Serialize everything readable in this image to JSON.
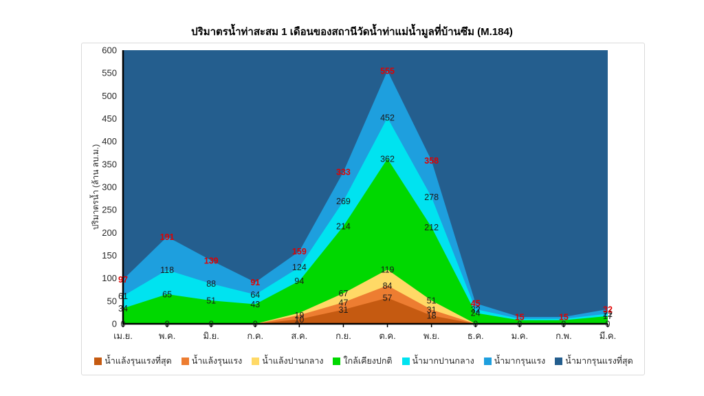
{
  "title": "ปริมาตรน้ำท่าสะสม 1 เดือนของสถานีวัดน้ำท่าแม่น้ำมูลที่บ้านซึม (M.184)",
  "chart_data": {
    "type": "area",
    "stacked": true,
    "title": "ปริมาตรน้ำท่าสะสม 1 เดือนของสถานีวัดน้ำท่าแม่น้ำมูลที่บ้านซึม (M.184)",
    "ylabel": "ปริมาตรน้ำ (ล้าน ลบ.ม.)",
    "xlabel": "",
    "categories": [
      "เม.ย.",
      "พ.ค.",
      "มิ.ย.",
      "ก.ค.",
      "ส.ค.",
      "ก.ย.",
      "ต.ค.",
      "พ.ย.",
      "ธ.ค.",
      "ม.ค.",
      "ก.พ.",
      "มี.ค."
    ],
    "y_axis": {
      "min": 0,
      "max": 600,
      "step": 50
    },
    "legend_position": "bottom",
    "grid": false,
    "note": "tops = cumulative stacked value at each month as labeled on the chart; last series fills plot to 600",
    "series": [
      {
        "key": "drought-most-severe",
        "name": "น้ำแล้งรุนแรงที่สุด",
        "color": "#C55A11",
        "label_color": "#1a1a1a",
        "label_bold": false,
        "tops": [
          0,
          0,
          0,
          0,
          10,
          31,
          57,
          18,
          0,
          0,
          0,
          0
        ],
        "label_visible": [
          1,
          1,
          1,
          1,
          1,
          1,
          1,
          1,
          1,
          1,
          1,
          1
        ]
      },
      {
        "key": "drought-severe",
        "name": "น้ำแล้งรุนแรง",
        "color": "#ED7D31",
        "label_color": "#1a1a1a",
        "label_bold": false,
        "tops": [
          0,
          0,
          0,
          0,
          19,
          47,
          84,
          31,
          0,
          0,
          0,
          0
        ],
        "label_visible": [
          0,
          0,
          0,
          0,
          1,
          1,
          1,
          1,
          0,
          0,
          0,
          0
        ]
      },
      {
        "key": "drought-moderate",
        "name": "น้ำแล้งปานกลาง",
        "color": "#FFD966",
        "label_color": "#1a1a1a",
        "label_bold": false,
        "tops": [
          0,
          0,
          0,
          0,
          24,
          67,
          119,
          51,
          0,
          0,
          0,
          0
        ],
        "label_visible": [
          0,
          0,
          0,
          0,
          0,
          1,
          1,
          1,
          0,
          0,
          0,
          0
        ]
      },
      {
        "key": "near-normal",
        "name": "ใกล้เคียงปกติ",
        "color": "#00D800",
        "label_color": "#1a1a1a",
        "label_bold": false,
        "tops": [
          34,
          65,
          51,
          43,
          94,
          214,
          362,
          212,
          24,
          8,
          8,
          17
        ],
        "label_visible": [
          1,
          1,
          1,
          1,
          1,
          1,
          1,
          1,
          1,
          0,
          0,
          1
        ]
      },
      {
        "key": "flood-moderate",
        "name": "น้ำมากปานกลาง",
        "color": "#00E3F0",
        "label_color": "#1a1a1a",
        "label_bold": false,
        "tops": [
          61,
          118,
          88,
          64,
          124,
          269,
          452,
          278,
          32,
          11,
          11,
          22
        ],
        "label_visible": [
          1,
          1,
          1,
          1,
          1,
          1,
          1,
          1,
          1,
          0,
          0,
          1
        ]
      },
      {
        "key": "flood-severe",
        "name": "น้ำมากรุนแรง",
        "color": "#1E9FDE",
        "label_color": "#E00000",
        "label_bold": true,
        "tops": [
          97,
          191,
          139,
          91,
          159,
          333,
          555,
          358,
          45,
          15,
          15,
          32
        ],
        "label_visible": [
          1,
          1,
          1,
          1,
          1,
          1,
          1,
          1,
          1,
          1,
          1,
          1
        ]
      },
      {
        "key": "flood-most-severe",
        "name": "น้ำมากรุนแรงที่สุด",
        "color": "#245E8E",
        "label_color": "#1a1a1a",
        "label_bold": false,
        "tops": [
          600,
          600,
          600,
          600,
          600,
          600,
          600,
          600,
          600,
          600,
          600,
          600
        ],
        "label_visible": [
          0,
          0,
          0,
          0,
          0,
          0,
          0,
          0,
          0,
          0,
          0,
          0
        ]
      }
    ]
  },
  "colors": {
    "axis": "#000000",
    "tick_label": "#262626",
    "plot_border": "#D9D9D9",
    "background": "#FFFFFF",
    "red_label": "#E00000"
  }
}
